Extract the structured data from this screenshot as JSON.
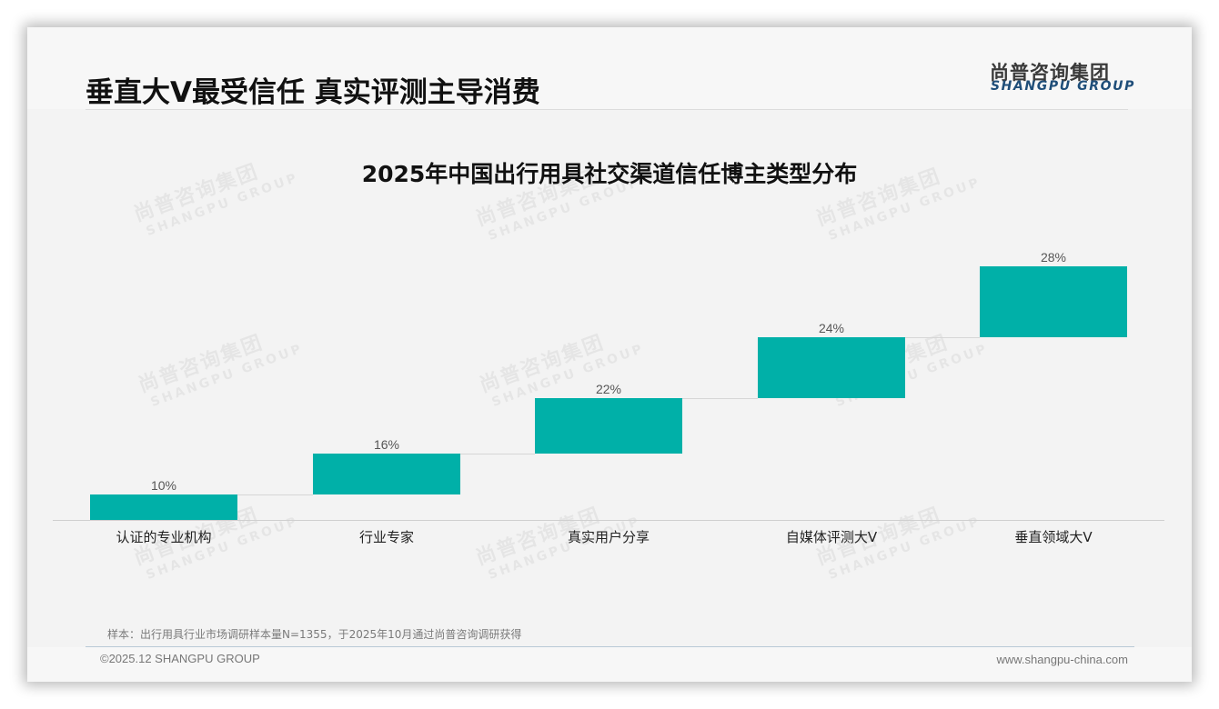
{
  "header": {
    "title": "垂直大V最受信任 真实评测主导消费",
    "logo_cn": "尚普咨询集团",
    "logo_en": "SHANGPU GROUP"
  },
  "watermark": {
    "cn": "尚普咨询集团",
    "en": "SHANGPU GROUP"
  },
  "colors": {
    "bar": "#00b0a8",
    "connector": "#d6d6d6",
    "logo_en": "#1f4e79"
  },
  "chart_data": {
    "type": "bar",
    "subtype": "waterfall",
    "title": "2025年中国出行用具社交渠道信任博主类型分布",
    "categories": [
      "认证的专业机构",
      "行业专家",
      "真实用户分享",
      "自媒体评测大V",
      "垂直领域大V"
    ],
    "values": [
      10,
      16,
      22,
      24,
      28
    ],
    "value_labels": [
      "10%",
      "16%",
      "22%",
      "24%",
      "28%"
    ],
    "unit": "%",
    "xlabel": "",
    "ylabel": "",
    "ylim": [
      0,
      100
    ],
    "grid": false,
    "legend": "none"
  },
  "footer": {
    "sample_note": "样本：出行用具行业市场调研样本量N=1355，于2025年10月通过尚普咨询调研获得",
    "copyright": "©2025.12 SHANGPU GROUP",
    "website": "www.shangpu-china.com"
  }
}
